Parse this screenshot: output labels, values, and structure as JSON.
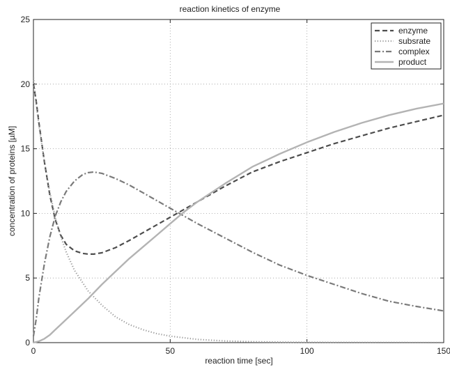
{
  "chart_data": {
    "type": "line",
    "title": "reaction kinetics of enzyme",
    "xlabel": "reaction time [sec]",
    "ylabel": "concentration of proteins [µM]",
    "xlim": [
      0,
      150
    ],
    "ylim": [
      0,
      25
    ],
    "xticks": [
      0,
      50,
      100,
      150
    ],
    "yticks": [
      0,
      5,
      10,
      15,
      20,
      25
    ],
    "grid": true,
    "legend_position": "top-right",
    "series": [
      {
        "name": "enzyme",
        "style": "dashed",
        "color": "#4d4d4d",
        "x": [
          0,
          1,
          2,
          4,
          6,
          8,
          10,
          12,
          15,
          18,
          20,
          22,
          25,
          30,
          35,
          40,
          45,
          50,
          60,
          70,
          80,
          90,
          100,
          110,
          120,
          130,
          140,
          150
        ],
        "y": [
          20,
          18.7,
          17.0,
          14.0,
          11.4,
          9.5,
          8.3,
          7.6,
          7.1,
          6.9,
          6.85,
          6.85,
          6.95,
          7.35,
          7.9,
          8.5,
          9.1,
          9.7,
          10.9,
          12.1,
          13.2,
          14.0,
          14.7,
          15.4,
          16.0,
          16.6,
          17.1,
          17.6
        ]
      },
      {
        "name": "subsrate",
        "style": "dotted",
        "color": "#9a9a9a",
        "x": [
          0,
          1,
          2,
          4,
          6,
          8,
          10,
          12,
          15,
          20,
          25,
          30,
          35,
          40,
          45,
          50,
          60,
          70,
          80,
          90,
          100,
          120,
          150
        ],
        "y": [
          20.5,
          18.5,
          16.8,
          14.0,
          11.6,
          9.7,
          8.2,
          7.0,
          5.6,
          4.0,
          2.9,
          2.0,
          1.4,
          1.0,
          0.7,
          0.5,
          0.25,
          0.13,
          0.07,
          0.04,
          0.02,
          0.01,
          0
        ]
      },
      {
        "name": "complex",
        "style": "dashdot",
        "color": "#7a7a7a",
        "x": [
          0,
          1,
          2,
          4,
          6,
          8,
          10,
          12,
          15,
          18,
          20,
          22,
          25,
          30,
          35,
          40,
          50,
          60,
          70,
          80,
          90,
          100,
          110,
          120,
          130,
          140,
          150
        ],
        "y": [
          0.5,
          1.8,
          3.5,
          6.1,
          8.2,
          9.8,
          10.9,
          11.7,
          12.5,
          13.0,
          13.15,
          13.2,
          13.1,
          12.7,
          12.2,
          11.6,
          10.4,
          9.2,
          8.1,
          7.0,
          6.0,
          5.2,
          4.5,
          3.8,
          3.2,
          2.8,
          2.45
        ]
      },
      {
        "name": "product",
        "style": "solid",
        "color": "#b3b3b3",
        "x": [
          0,
          2,
          4,
          6,
          8,
          10,
          15,
          20,
          25,
          30,
          35,
          40,
          45,
          50,
          55,
          60,
          70,
          80,
          90,
          100,
          110,
          120,
          130,
          140,
          150
        ],
        "y": [
          0,
          0.1,
          0.3,
          0.6,
          1.0,
          1.4,
          2.4,
          3.4,
          4.5,
          5.5,
          6.5,
          7.4,
          8.3,
          9.2,
          10.1,
          10.9,
          12.3,
          13.6,
          14.6,
          15.5,
          16.3,
          17.0,
          17.6,
          18.1,
          18.5
        ]
      }
    ]
  }
}
